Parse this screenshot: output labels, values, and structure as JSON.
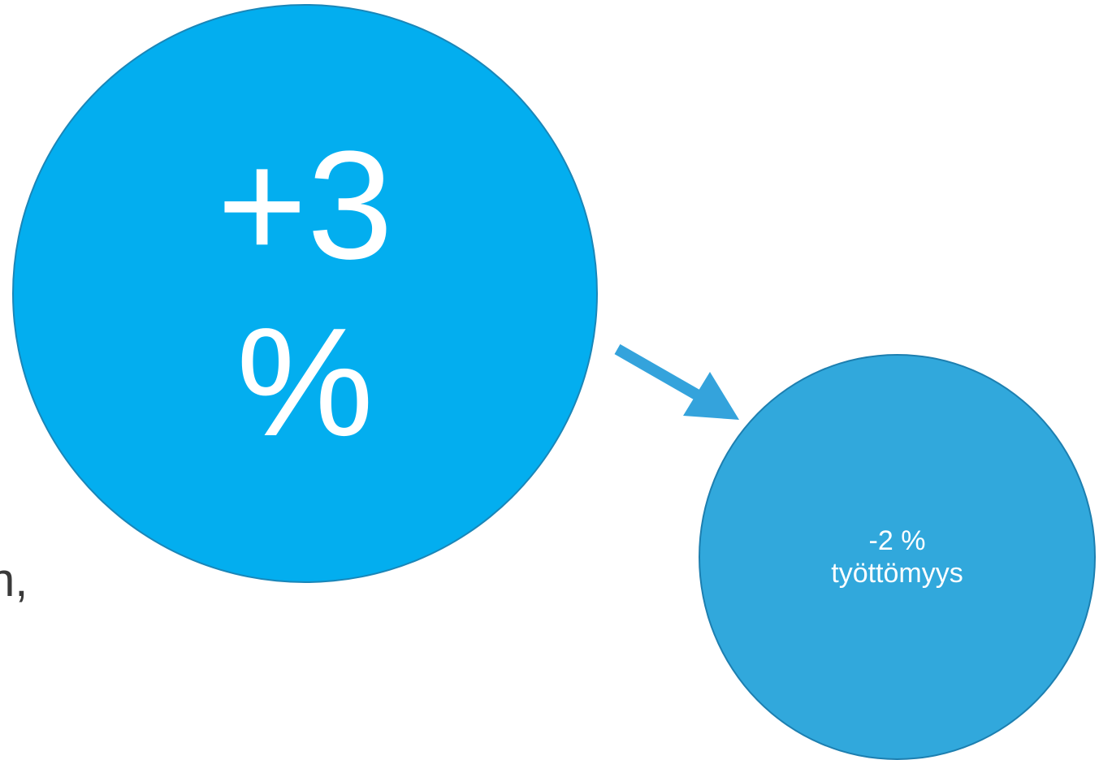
{
  "colors": {
    "big_circle_fill": "#03aeef",
    "small_circle_fill": "#31a8dc",
    "arrow": "#34a3dc",
    "text_on_circle": "#ffffff",
    "side_text": "#3a3a3a"
  },
  "big_circle": {
    "line1": "+3",
    "line2": "%"
  },
  "small_circle": {
    "line1": "-2 %",
    "line2": "työttömyys"
  },
  "side_text": "n,",
  "arrow": {
    "icon": "arrow-down-right-icon"
  }
}
